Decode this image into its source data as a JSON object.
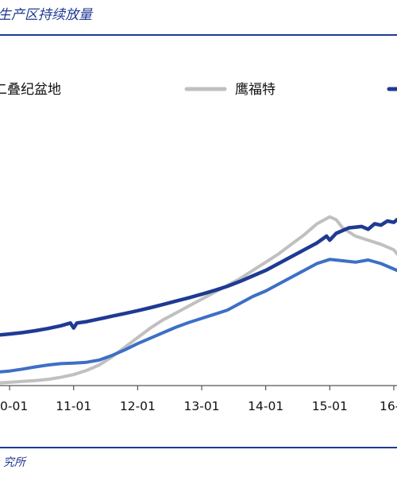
{
  "title": "生产区持续放量",
  "source": "究所",
  "colors": {
    "header_rule": "#1f3a93",
    "axis": "#555555"
  },
  "chart_data": {
    "type": "line",
    "title": "生产区持续放量",
    "xlabel": "",
    "ylabel": "",
    "legend_position": "top",
    "grid": false,
    "x_tick_labels": [
      "0-01",
      "11-01",
      "12-01",
      "13-01",
      "14-01",
      "15-01",
      "16-"
    ],
    "xlim": [
      9.85,
      16.05
    ],
    "ylim": [
      0,
      100
    ],
    "series": [
      {
        "name": "",
        "legend_label": "",
        "color": "#1f3a93",
        "in_legend": false,
        "points": [
          [
            9.85,
            18.5
          ],
          [
            10.0,
            18.8
          ],
          [
            10.2,
            19.3
          ],
          [
            10.4,
            20.0
          ],
          [
            10.6,
            20.8
          ],
          [
            10.8,
            21.8
          ],
          [
            10.95,
            22.8
          ],
          [
            11.0,
            21.0
          ],
          [
            11.05,
            22.8
          ],
          [
            11.2,
            23.3
          ],
          [
            11.4,
            24.3
          ],
          [
            11.6,
            25.3
          ],
          [
            11.8,
            26.3
          ],
          [
            12.0,
            27.3
          ],
          [
            12.2,
            28.4
          ],
          [
            12.4,
            29.6
          ],
          [
            12.6,
            30.8
          ],
          [
            12.8,
            32.0
          ],
          [
            13.0,
            33.3
          ],
          [
            13.2,
            34.7
          ],
          [
            13.4,
            36.2
          ],
          [
            13.6,
            38.0
          ],
          [
            13.8,
            40.0
          ],
          [
            14.0,
            42.0
          ],
          [
            14.2,
            44.5
          ],
          [
            14.4,
            47.0
          ],
          [
            14.6,
            49.5
          ],
          [
            14.8,
            52.0
          ],
          [
            14.95,
            54.5
          ],
          [
            15.0,
            53.0
          ],
          [
            15.1,
            55.5
          ],
          [
            15.3,
            57.5
          ],
          [
            15.5,
            58.0
          ],
          [
            15.6,
            57.0
          ],
          [
            15.7,
            59.0
          ],
          [
            15.8,
            58.5
          ],
          [
            15.9,
            60.0
          ],
          [
            16.0,
            59.5
          ],
          [
            16.05,
            60.5
          ]
        ]
      },
      {
        "name": "鹰福特",
        "legend_label": "鹰福特",
        "color": "#c0c0c0",
        "in_legend": true,
        "points": [
          [
            9.85,
            1.0
          ],
          [
            10.0,
            1.2
          ],
          [
            10.2,
            1.5
          ],
          [
            10.4,
            1.8
          ],
          [
            10.6,
            2.3
          ],
          [
            10.8,
            3.0
          ],
          [
            11.0,
            4.0
          ],
          [
            11.2,
            5.5
          ],
          [
            11.4,
            7.5
          ],
          [
            11.6,
            10.5
          ],
          [
            11.8,
            14.0
          ],
          [
            12.0,
            17.5
          ],
          [
            12.2,
            21.0
          ],
          [
            12.4,
            24.0
          ],
          [
            12.6,
            26.5
          ],
          [
            12.8,
            29.0
          ],
          [
            13.0,
            31.5
          ],
          [
            13.2,
            34.0
          ],
          [
            13.4,
            36.5
          ],
          [
            13.6,
            39.0
          ],
          [
            13.8,
            42.0
          ],
          [
            14.0,
            45.0
          ],
          [
            14.2,
            48.0
          ],
          [
            14.4,
            51.5
          ],
          [
            14.6,
            55.0
          ],
          [
            14.8,
            59.0
          ],
          [
            15.0,
            61.5
          ],
          [
            15.1,
            60.5
          ],
          [
            15.2,
            57.5
          ],
          [
            15.4,
            54.5
          ],
          [
            15.6,
            53.0
          ],
          [
            15.8,
            51.5
          ],
          [
            16.0,
            49.5
          ],
          [
            16.05,
            48.0
          ]
        ]
      },
      {
        "name": "二叠纪盆地",
        "legend_label": "二叠纪盆地",
        "color": "#3d6fc6",
        "in_legend": true,
        "points": [
          [
            9.85,
            5.0
          ],
          [
            10.0,
            5.3
          ],
          [
            10.2,
            6.0
          ],
          [
            10.4,
            6.8
          ],
          [
            10.6,
            7.5
          ],
          [
            10.8,
            8.0
          ],
          [
            11.0,
            8.2
          ],
          [
            11.2,
            8.5
          ],
          [
            11.4,
            9.3
          ],
          [
            11.6,
            11.0
          ],
          [
            11.8,
            13.0
          ],
          [
            12.0,
            15.3
          ],
          [
            12.2,
            17.3
          ],
          [
            12.4,
            19.3
          ],
          [
            12.6,
            21.3
          ],
          [
            12.8,
            23.0
          ],
          [
            13.0,
            24.5
          ],
          [
            13.2,
            26.0
          ],
          [
            13.4,
            27.5
          ],
          [
            13.6,
            30.0
          ],
          [
            13.8,
            32.5
          ],
          [
            14.0,
            34.5
          ],
          [
            14.2,
            37.0
          ],
          [
            14.4,
            39.5
          ],
          [
            14.6,
            42.0
          ],
          [
            14.8,
            44.5
          ],
          [
            15.0,
            46.0
          ],
          [
            15.2,
            45.5
          ],
          [
            15.4,
            45.0
          ],
          [
            15.6,
            45.8
          ],
          [
            15.8,
            44.5
          ],
          [
            16.0,
            42.5
          ],
          [
            16.05,
            42.0
          ]
        ]
      }
    ]
  }
}
